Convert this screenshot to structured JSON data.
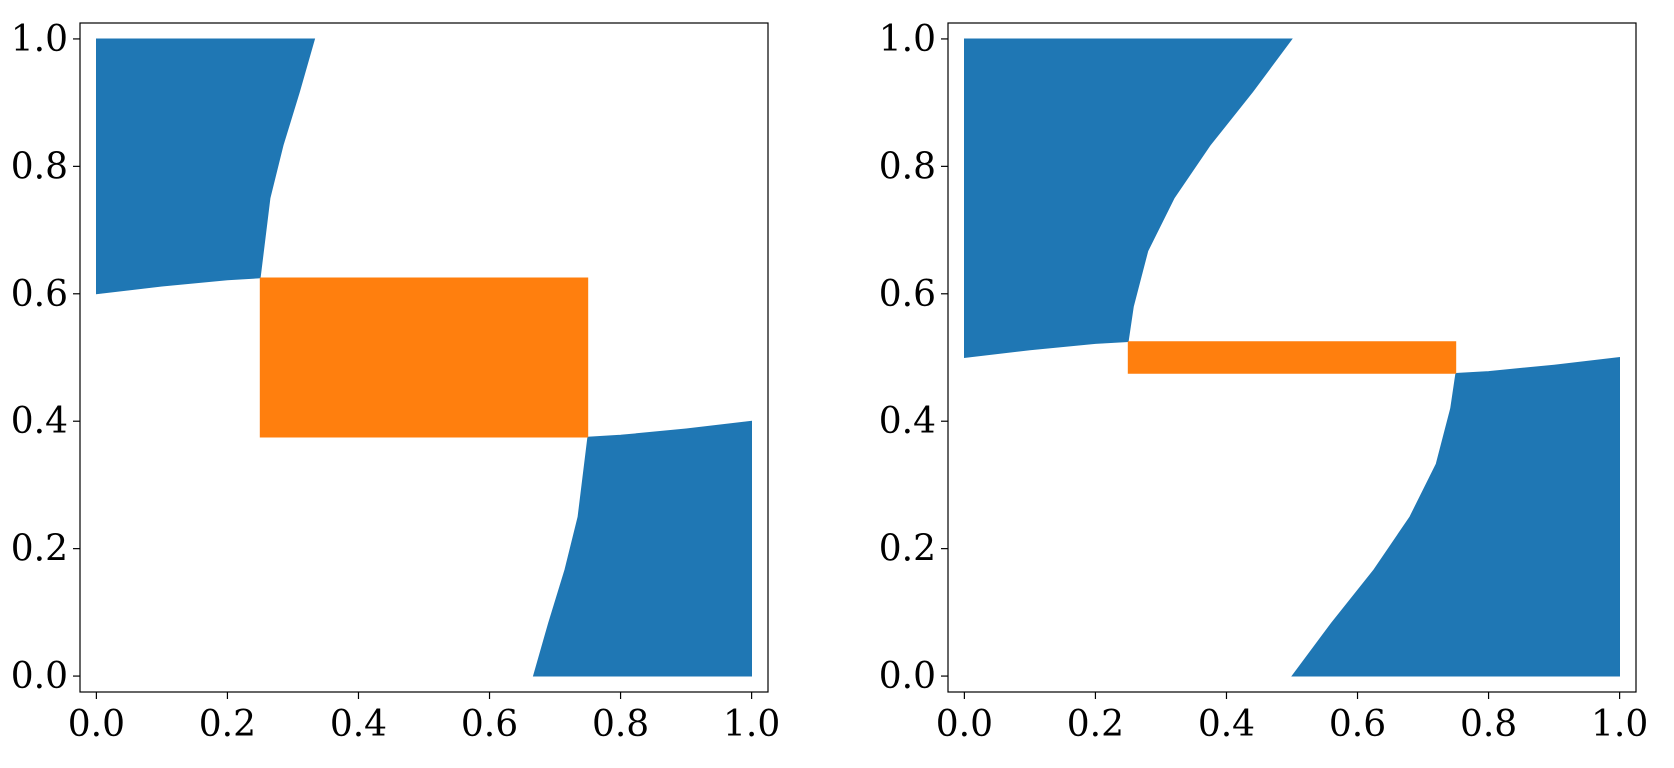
{
  "chart_data": [
    {
      "type": "area",
      "xlim": [
        -0.025,
        1.025
      ],
      "ylim": [
        -0.025,
        1.025
      ],
      "xticks": [
        0.0,
        0.2,
        0.4,
        0.6,
        0.8,
        1.0
      ],
      "yticks": [
        0.0,
        0.2,
        0.4,
        0.6,
        0.8,
        1.0
      ],
      "xtick_labels": [
        "0.0",
        "0.2",
        "0.4",
        "0.6",
        "0.8",
        "1.0"
      ],
      "ytick_labels": [
        "0.0",
        "0.2",
        "0.4",
        "0.6",
        "0.8",
        "1.0"
      ],
      "grid": false,
      "colors": {
        "blue": "#1f77b4",
        "orange": "#ff7f0e"
      },
      "regions": [
        {
          "color": "#1f77b4",
          "polygon": [
            [
              0.0,
              1.0
            ],
            [
              0.333,
              1.0
            ],
            [
              0.31,
              0.917
            ],
            [
              0.285,
              0.833
            ],
            [
              0.265,
              0.75
            ],
            [
              0.255,
              0.667
            ],
            [
              0.25,
              0.625
            ],
            [
              0.2,
              0.622
            ],
            [
              0.1,
              0.612
            ],
            [
              0.0,
              0.6
            ]
          ]
        },
        {
          "color": "#1f77b4",
          "polygon": [
            [
              0.667,
              0.0
            ],
            [
              0.69,
              0.083
            ],
            [
              0.715,
              0.167
            ],
            [
              0.735,
              0.25
            ],
            [
              0.745,
              0.333
            ],
            [
              0.75,
              0.375
            ],
            [
              0.8,
              0.378
            ],
            [
              0.9,
              0.388
            ],
            [
              1.0,
              0.4
            ],
            [
              1.0,
              0.0
            ]
          ]
        },
        {
          "color": "#ff7f0e",
          "polygon": [
            [
              0.25,
              0.375
            ],
            [
              0.75,
              0.375
            ],
            [
              0.75,
              0.625
            ],
            [
              0.25,
              0.625
            ]
          ]
        }
      ]
    },
    {
      "type": "area",
      "xlim": [
        -0.025,
        1.025
      ],
      "ylim": [
        -0.025,
        1.025
      ],
      "xticks": [
        0.0,
        0.2,
        0.4,
        0.6,
        0.8,
        1.0
      ],
      "yticks": [
        0.0,
        0.2,
        0.4,
        0.6,
        0.8,
        1.0
      ],
      "xtick_labels": [
        "0.0",
        "0.2",
        "0.4",
        "0.6",
        "0.8",
        "1.0"
      ],
      "ytick_labels": [
        "0.0",
        "0.2",
        "0.4",
        "0.6",
        "0.8",
        "1.0"
      ],
      "grid": false,
      "colors": {
        "blue": "#1f77b4",
        "orange": "#ff7f0e"
      },
      "regions": [
        {
          "color": "#1f77b4",
          "polygon": [
            [
              0.0,
              1.0
            ],
            [
              0.5,
              1.0
            ],
            [
              0.44,
              0.917
            ],
            [
              0.375,
              0.833
            ],
            [
              0.32,
              0.75
            ],
            [
              0.28,
              0.667
            ],
            [
              0.258,
              0.58
            ],
            [
              0.25,
              0.525
            ],
            [
              0.2,
              0.522
            ],
            [
              0.1,
              0.512
            ],
            [
              0.0,
              0.5
            ]
          ]
        },
        {
          "color": "#1f77b4",
          "polygon": [
            [
              0.5,
              0.0
            ],
            [
              0.56,
              0.083
            ],
            [
              0.625,
              0.167
            ],
            [
              0.68,
              0.25
            ],
            [
              0.72,
              0.333
            ],
            [
              0.742,
              0.42
            ],
            [
              0.75,
              0.475
            ],
            [
              0.8,
              0.478
            ],
            [
              0.9,
              0.488
            ],
            [
              1.0,
              0.5
            ],
            [
              1.0,
              0.0
            ]
          ]
        },
        {
          "color": "#ff7f0e",
          "polygon": [
            [
              0.25,
              0.475
            ],
            [
              0.75,
              0.475
            ],
            [
              0.75,
              0.525
            ],
            [
              0.25,
              0.525
            ]
          ]
        }
      ]
    }
  ]
}
